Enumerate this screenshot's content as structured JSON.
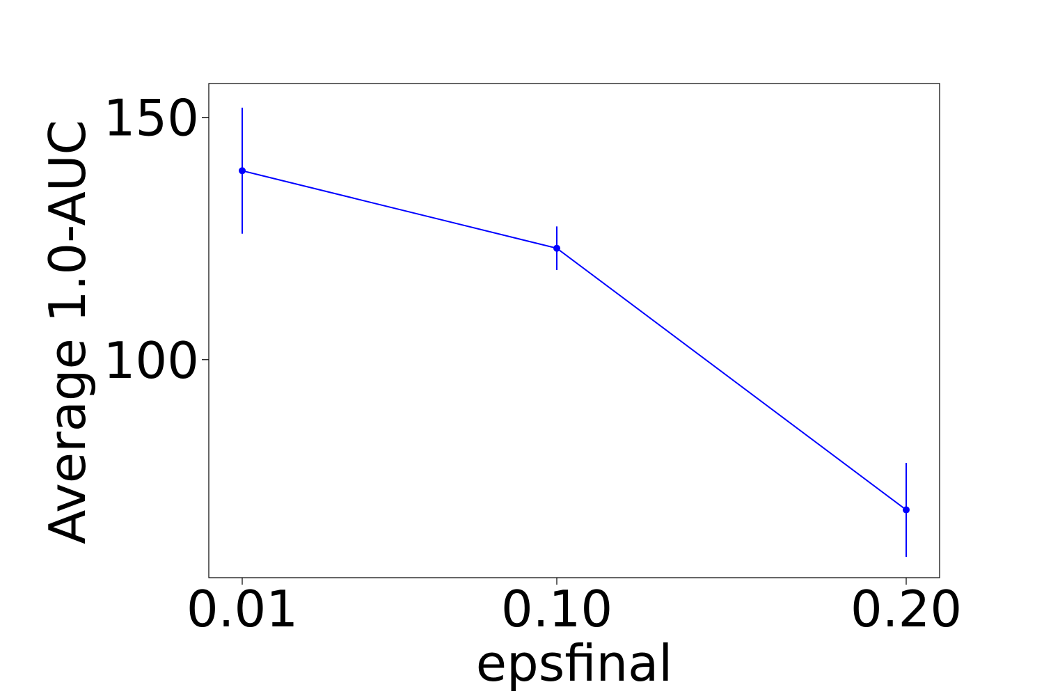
{
  "chart_data": {
    "type": "line",
    "title": "",
    "xlabel": "epsfinal",
    "ylabel": "Average 1.0-AUC",
    "x_categories": [
      "0.01",
      "0.10",
      "0.20"
    ],
    "y_ticks": [
      100,
      150
    ],
    "ylim": [
      55,
      157
    ],
    "grid": false,
    "legend": "none",
    "color": "#0000ff",
    "series": [
      {
        "values": [
          139,
          123,
          69
        ],
        "error": [
          13,
          4.5,
          9.7
        ]
      }
    ]
  }
}
